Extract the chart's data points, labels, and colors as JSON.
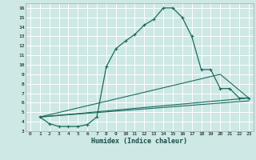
{
  "xlabel": "Humidex (Indice chaleur)",
  "background_color": "#cde8e5",
  "grid_color": "#ffffff",
  "line_color": "#1a6b60",
  "xlim": [
    -0.5,
    23.5
  ],
  "ylim": [
    3,
    16.5
  ],
  "xticks": [
    0,
    1,
    2,
    3,
    4,
    5,
    6,
    7,
    8,
    9,
    10,
    11,
    12,
    13,
    14,
    15,
    16,
    17,
    18,
    19,
    20,
    21,
    22,
    23
  ],
  "yticks": [
    3,
    4,
    5,
    6,
    7,
    8,
    9,
    10,
    11,
    12,
    13,
    14,
    15,
    16
  ],
  "series_main": {
    "x": [
      1,
      2,
      3,
      4,
      5,
      6,
      7,
      8,
      9,
      10,
      11,
      12,
      13,
      14,
      15,
      16,
      17,
      18,
      19,
      20,
      21,
      22,
      23
    ],
    "y": [
      4.5,
      3.8,
      3.5,
      3.5,
      3.5,
      3.7,
      4.5,
      9.8,
      11.7,
      12.5,
      13.2,
      14.2,
      14.8,
      16.0,
      16.0,
      15.0,
      13.0,
      9.5,
      9.5,
      7.5,
      7.5,
      6.5,
      6.5
    ]
  },
  "series_extra": [
    {
      "x": [
        1,
        23
      ],
      "y": [
        4.5,
        6.5
      ]
    },
    {
      "x": [
        1,
        20,
        23
      ],
      "y": [
        4.5,
        9.0,
        6.5
      ]
    },
    {
      "x": [
        1,
        23
      ],
      "y": [
        4.5,
        6.2
      ]
    }
  ]
}
